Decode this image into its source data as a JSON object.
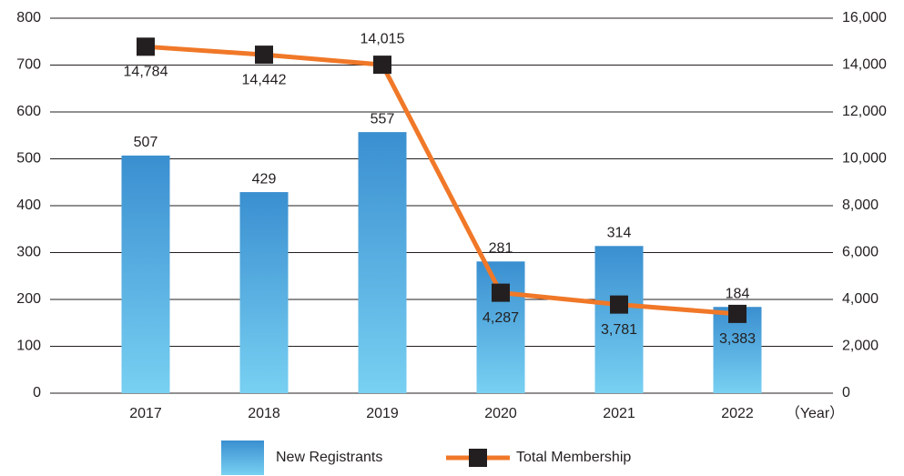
{
  "chart_data": {
    "type": "combo",
    "categories": [
      "2017",
      "2018",
      "2019",
      "2020",
      "2021",
      "2022"
    ],
    "x_label": "（Year）",
    "series": [
      {
        "name": "New Registrants",
        "type": "bar",
        "color": "#3a8fd0",
        "color_light": "#78d0f2",
        "axis": "y",
        "values": [
          507,
          429,
          557,
          281,
          314,
          184
        ]
      },
      {
        "name": "Total Membership",
        "type": "line",
        "color": "#f07828",
        "marker_color": "#231f20",
        "axis": "y2",
        "values": [
          14784,
          14442,
          14015,
          4287,
          3781,
          3383
        ],
        "value_labels": [
          "14,784",
          "14,442",
          "14,015",
          "4,287",
          "3,781",
          "3,383"
        ]
      }
    ],
    "ylim": [
      0,
      800
    ],
    "yticks": [
      0,
      100,
      200,
      300,
      400,
      500,
      600,
      700,
      800
    ],
    "y2lim": [
      0,
      16000
    ],
    "y2ticks": [
      0,
      {
        "value": 2000,
        "label": "2,000"
      },
      {
        "value": 4000,
        "label": "4,000"
      },
      {
        "value": 6000,
        "label": "6,000"
      },
      {
        "value": 8000,
        "label": "8,000"
      },
      {
        "value": 10000,
        "label": "10,000"
      },
      {
        "value": 12000,
        "label": "12,000"
      },
      {
        "value": 14000,
        "label": "14,000"
      },
      {
        "value": 16000,
        "label": "16,000"
      }
    ],
    "grid": true
  }
}
